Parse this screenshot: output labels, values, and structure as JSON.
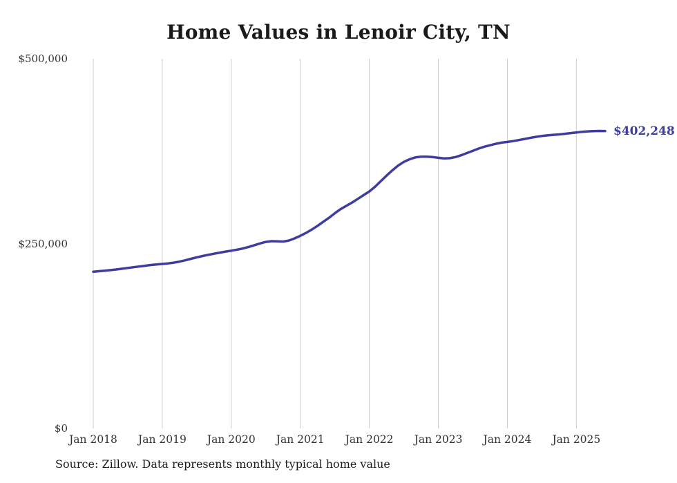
{
  "title": "Home Values in Lenoir City, TN",
  "source": "Source: Zillow. Data represents monthly typical home value",
  "end_label": "$402,248",
  "colors": {
    "line": "#3e3c9e",
    "grid": "#cccccc",
    "text": "#333333",
    "end_label": "#3e3c9e"
  },
  "chart_data": {
    "type": "line",
    "title": "Home Values in Lenoir City, TN",
    "xlabel": "",
    "ylabel": "",
    "ylim": [
      0,
      500000
    ],
    "grid": "vertical-only",
    "legend_position": "none",
    "y_tick_values": [
      0,
      250000,
      500000
    ],
    "y_tick_labels": [
      "$0",
      "$250,000",
      "$500,000"
    ],
    "x_tick_labels": [
      "Jan 2018",
      "Jan 2019",
      "Jan 2020",
      "Jan 2021",
      "Jan 2022",
      "Jan 2023",
      "Jan 2024",
      "Jan 2025"
    ],
    "x_tick_month_index": [
      0,
      12,
      24,
      36,
      48,
      60,
      72,
      84
    ],
    "x_start_month": "Jan 2018",
    "x_end_month": "Jun 2025",
    "series": [
      {
        "name": "Typical home value",
        "final_value": 402248,
        "values": [
          212000,
          212600,
          213300,
          214100,
          215000,
          216000,
          217000,
          218000,
          219000,
          220000,
          221000,
          221800,
          222400,
          223200,
          224200,
          225600,
          227400,
          229400,
          231400,
          233200,
          234800,
          236300,
          237800,
          239200,
          240400,
          241800,
          243400,
          245400,
          247800,
          250200,
          252200,
          253300,
          253100,
          252700,
          254100,
          257000,
          260500,
          264500,
          269000,
          274000,
          279500,
          285000,
          291000,
          296500,
          301000,
          305500,
          310500,
          315500,
          320500,
          327000,
          334500,
          342000,
          349000,
          355500,
          360500,
          364000,
          366500,
          367500,
          367500,
          367000,
          366000,
          365200,
          365500,
          367000,
          369500,
          372500,
          375500,
          378500,
          381000,
          383000,
          385000,
          386500,
          387500,
          388600,
          390000,
          391500,
          393000,
          394400,
          395500,
          396400,
          397100,
          397700,
          398500,
          399400,
          400300,
          401200,
          401800,
          402100,
          402300,
          402248
        ]
      }
    ]
  }
}
